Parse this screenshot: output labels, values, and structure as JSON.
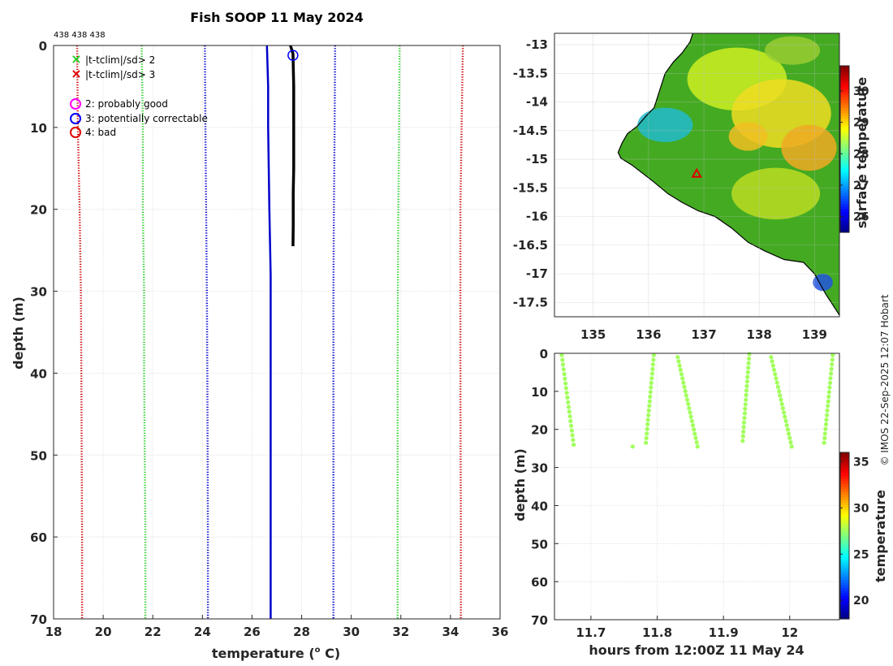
{
  "header": {
    "title": "Fish SOOP 11 May 2024",
    "station_ids": "438 438 438"
  },
  "legend": {
    "flags": [
      {
        "symbol": "x",
        "color": "#22cc22",
        "label": "|t-tclim|/sd> 2"
      },
      {
        "symbol": "x",
        "color": "#e00000",
        "label": "|t-tclim|/sd> 3"
      }
    ],
    "qc": [
      {
        "symbol": "o",
        "color": "#ff00ff",
        "label": "2: probably good"
      },
      {
        "symbol": "o",
        "color": "#0000ff",
        "label": "3: potentially correctable"
      },
      {
        "symbol": "o",
        "color": "#e00000",
        "label": "4: bad"
      }
    ]
  },
  "credit": "© IMOS 22-Sep-2025 12:07 Hobart",
  "chart_data": [
    {
      "id": "profile",
      "type": "line",
      "xlabel": "temperature (°C)",
      "xlabel_main": "temperature (",
      "xlabel_sup": "o",
      "xlabel_end": " C)",
      "ylabel": "depth (m)",
      "xlim": [
        18,
        36
      ],
      "ylim": [
        0,
        70
      ],
      "xticks": [
        18,
        20,
        22,
        24,
        26,
        28,
        30,
        32,
        34,
        36
      ],
      "yticks": [
        0,
        10,
        20,
        30,
        40,
        50,
        60,
        70
      ],
      "series": [
        {
          "name": "clim -3sd",
          "color": "#cc0000",
          "style": "dotted",
          "x": [
            18.95,
            18.98,
            19.05,
            19.1,
            19.12,
            19.15,
            19.15
          ],
          "y": [
            0,
            10,
            20,
            30,
            40,
            60,
            70
          ]
        },
        {
          "name": "clim -2sd",
          "color": "#22cc22",
          "style": "dotted",
          "x": [
            21.55,
            21.6,
            21.6,
            21.65,
            21.65,
            21.7,
            21.7
          ],
          "y": [
            0,
            10,
            20,
            30,
            40,
            60,
            70
          ]
        },
        {
          "name": "clim -1sd",
          "color": "#0000cc",
          "style": "dotted",
          "x": [
            24.1,
            24.12,
            24.15,
            24.18,
            24.2,
            24.22,
            24.22
          ],
          "y": [
            0,
            10,
            20,
            30,
            40,
            60,
            70
          ]
        },
        {
          "name": "clim mean",
          "color": "#0000cc",
          "style": "solid",
          "x": [
            26.6,
            26.65,
            26.65,
            26.7,
            26.75,
            26.75,
            26.75,
            26.75
          ],
          "y": [
            0,
            5,
            10,
            20,
            28,
            40,
            60,
            70
          ]
        },
        {
          "name": "clim +1sd",
          "color": "#0000cc",
          "style": "dotted",
          "x": [
            29.35,
            29.33,
            29.3,
            29.28,
            29.28,
            29.28,
            29.28
          ],
          "y": [
            0,
            10,
            20,
            30,
            40,
            60,
            70
          ]
        },
        {
          "name": "clim +2sd",
          "color": "#22cc22",
          "style": "dotted",
          "x": [
            31.95,
            31.93,
            31.9,
            31.88,
            31.87,
            31.87,
            31.87
          ],
          "y": [
            0,
            10,
            20,
            30,
            40,
            60,
            70
          ]
        },
        {
          "name": "clim +3sd",
          "color": "#cc0000",
          "style": "dotted",
          "x": [
            34.5,
            34.45,
            34.4,
            34.4,
            34.4,
            34.42,
            34.42
          ],
          "y": [
            0,
            10,
            20,
            30,
            40,
            60,
            70
          ]
        },
        {
          "name": "observed",
          "color": "#000000",
          "style": "thick",
          "x": [
            27.55,
            27.65,
            27.68,
            27.68,
            27.68,
            27.66,
            27.66,
            27.65
          ],
          "y": [
            0,
            1,
            5,
            10,
            15,
            18,
            22,
            24.5
          ]
        }
      ],
      "qc_marker": {
        "x": 27.65,
        "y": 1.2,
        "color": "#0000ff"
      }
    },
    {
      "id": "map",
      "type": "heatmap",
      "xlim": [
        134.3,
        139.45
      ],
      "ylim": [
        -17.75,
        -12.8
      ],
      "xticks": [
        135,
        136,
        137,
        138,
        139
      ],
      "yticks": [
        -13,
        -13.5,
        -14,
        -14.5,
        -15,
        -15.5,
        -16,
        -16.5,
        -17,
        -17.5
      ],
      "ytick_labels": [
        "-13",
        "-13.5",
        "-14",
        "-14.5",
        "-15",
        "-15.5",
        "-16",
        "-16.5",
        "-17",
        "-17.5"
      ],
      "colorbar": {
        "label": "surface temperature",
        "range": [
          25.5,
          30.8
        ],
        "ticks": [
          26,
          27,
          28,
          29,
          30
        ]
      },
      "station": {
        "lon": 136.87,
        "lat": -15.25,
        "color": "#e00000"
      }
    },
    {
      "id": "timeseries",
      "type": "scatter",
      "xlabel": "hours from 12:00Z 11 May 24",
      "ylabel": "depth (m)",
      "xlim": [
        11.645,
        12.075
      ],
      "ylim": [
        0,
        70
      ],
      "xticks": [
        11.7,
        11.8,
        11.9,
        12.0
      ],
      "xtick_labels": [
        "11.7",
        "11.8",
        "11.9",
        "12"
      ],
      "yticks": [
        0,
        10,
        20,
        30,
        40,
        50,
        60,
        70
      ],
      "colorbar": {
        "label": "temperature",
        "range": [
          18,
          36
        ],
        "ticks": [
          20,
          25,
          30,
          35
        ]
      },
      "color_value": 27.6,
      "profiles": [
        {
          "t0": 11.656,
          "t1": 11.674,
          "d0": 0.5,
          "d1": 24.0,
          "n": 20
        },
        {
          "t0": 11.763,
          "t1": 11.763,
          "d0": 24.5,
          "d1": 24.5,
          "n": 1
        },
        {
          "t0": 11.795,
          "t1": 11.783,
          "d0": 0.5,
          "d1": 23.5,
          "n": 20
        },
        {
          "t0": 11.831,
          "t1": 11.861,
          "d0": 1.0,
          "d1": 24.5,
          "n": 22
        },
        {
          "t0": 11.939,
          "t1": 11.929,
          "d0": 0.2,
          "d1": 23.0,
          "n": 20
        },
        {
          "t0": 11.972,
          "t1": 12.003,
          "d0": 1.0,
          "d1": 24.5,
          "n": 22
        },
        {
          "t0": 12.065,
          "t1": 12.052,
          "d0": 0.5,
          "d1": 23.5,
          "n": 20
        }
      ]
    }
  ]
}
